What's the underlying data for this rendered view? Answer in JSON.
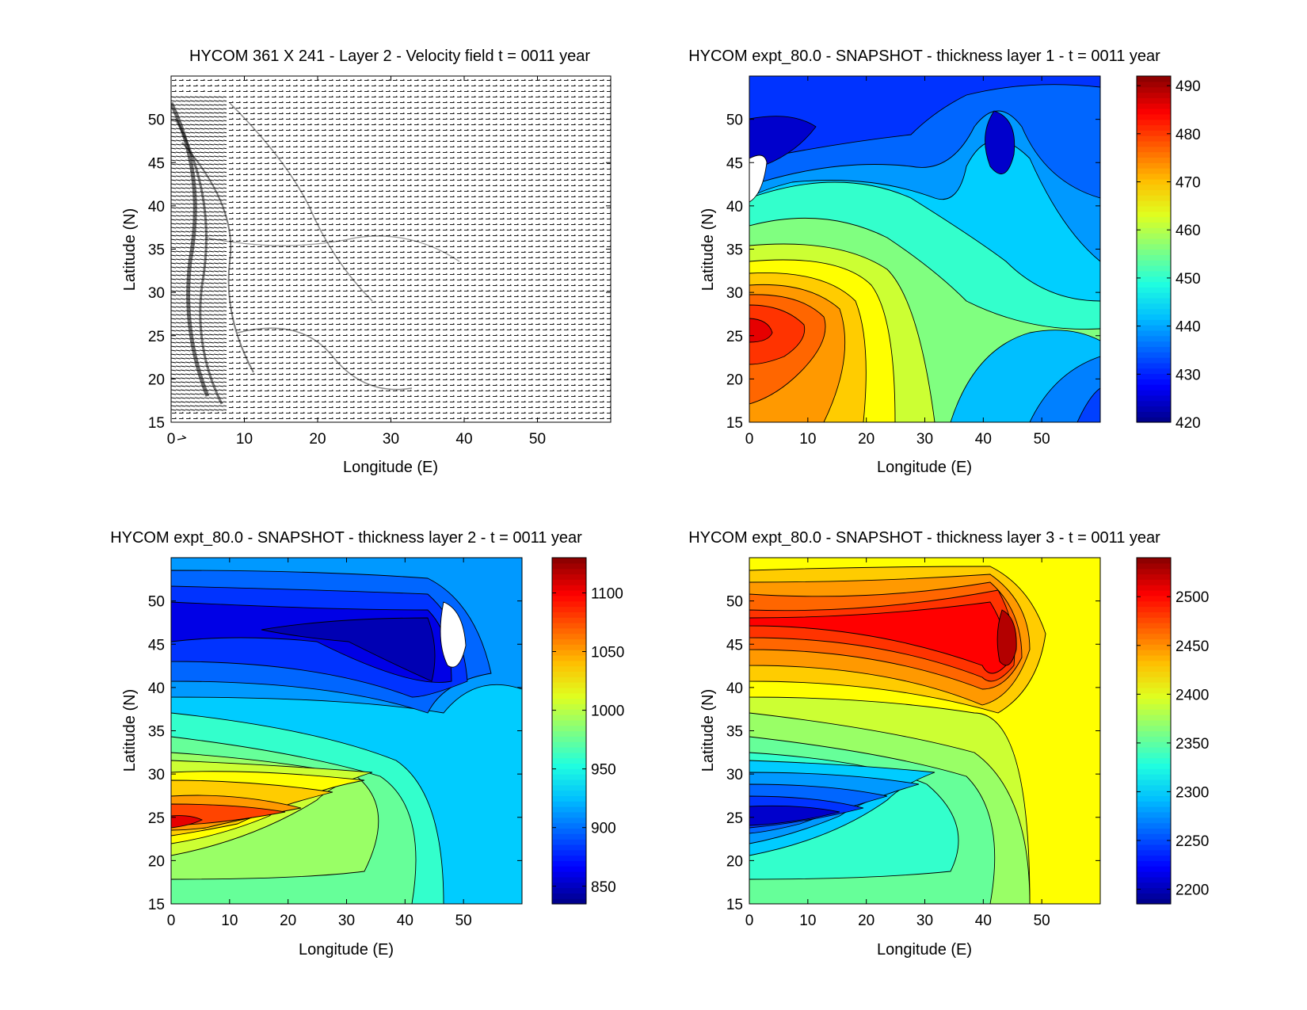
{
  "figure": {
    "panels": [
      {
        "id": "velocity",
        "title": "HYCOM 361 X 241 - Layer 2 - Velocity field  t = 0011 year",
        "xlabel": "Longitude (E)",
        "ylabel": "Latitude (N)",
        "x_ticks": [
          "0",
          "10",
          "20",
          "30",
          "40",
          "50"
        ],
        "y_ticks": [
          "15",
          "20",
          "25",
          "30",
          "35",
          "40",
          "45",
          "50"
        ]
      },
      {
        "id": "thickness1",
        "title": "HYCOM expt_80.0 - SNAPSHOT - thickness layer 1 - t = 0011 year",
        "xlabel": "Longitude (E)",
        "ylabel": "Latitude (N)",
        "x_ticks": [
          "0",
          "10",
          "20",
          "30",
          "40",
          "50"
        ],
        "y_ticks": [
          "15",
          "20",
          "25",
          "30",
          "35",
          "40",
          "45",
          "50"
        ],
        "colorbar_ticks": [
          "420",
          "430",
          "440",
          "450",
          "460",
          "470",
          "480",
          "490"
        ]
      },
      {
        "id": "thickness2",
        "title": "HYCOM expt_80.0 - SNAPSHOT - thickness layer 2 - t = 0011 year",
        "xlabel": "Longitude (E)",
        "ylabel": "Latitude (N)",
        "x_ticks": [
          "0",
          "10",
          "20",
          "30",
          "40",
          "50"
        ],
        "y_ticks": [
          "15",
          "20",
          "25",
          "30",
          "35",
          "40",
          "45",
          "50"
        ],
        "colorbar_ticks": [
          "850",
          "900",
          "950",
          "1000",
          "1050",
          "1100"
        ]
      },
      {
        "id": "thickness3",
        "title": "HYCOM expt_80.0 - SNAPSHOT - thickness layer 3 - t = 0011 year",
        "xlabel": "Longitude (E)",
        "ylabel": "Latitude (N)",
        "x_ticks": [
          "0",
          "10",
          "20",
          "30",
          "40",
          "50"
        ],
        "y_ticks": [
          "15",
          "20",
          "25",
          "30",
          "35",
          "40",
          "45",
          "50"
        ],
        "colorbar_ticks": [
          "2200",
          "2250",
          "2300",
          "2350",
          "2400",
          "2450",
          "2500"
        ]
      }
    ]
  },
  "chart_data": [
    {
      "type": "heatmap",
      "subtype": "quiver",
      "title": "HYCOM 361 X 241 - Layer 2 - Velocity field  t = 0011 year",
      "xlabel": "Longitude (E)",
      "ylabel": "Latitude (N)",
      "xlim": [
        0,
        60
      ],
      "ylim": [
        15,
        55
      ],
      "grid": 361,
      "grid_y": 241,
      "note_visible": "dense velocity arrows, strongest near western boundary (0-8E)"
    },
    {
      "type": "heatmap",
      "subtype": "filled-contour",
      "title": "HYCOM expt_80.0 - SNAPSHOT - thickness layer 1 - t = 0011 year",
      "xlabel": "Longitude (E)",
      "ylabel": "Latitude (N)",
      "xlim": [
        0,
        60
      ],
      "ylim": [
        15,
        55
      ],
      "colorbar": {
        "min": 420,
        "max": 492,
        "ticks": [
          420,
          430,
          440,
          450,
          460,
          470,
          480,
          490
        ],
        "colormap": "jet"
      },
      "features": [
        {
          "kind": "max",
          "lon": 2,
          "lat": 25,
          "value": 483
        },
        {
          "kind": "min",
          "lon": 45,
          "lat": 47,
          "value": 426
        },
        {
          "kind": "min",
          "lon": 2,
          "lat": 47,
          "value": 420
        }
      ]
    },
    {
      "type": "heatmap",
      "subtype": "filled-contour",
      "title": "HYCOM expt_80.0 - SNAPSHOT - thickness layer 2 - t = 0011 year",
      "xlabel": "Longitude (E)",
      "ylabel": "Latitude (N)",
      "xlim": [
        0,
        60
      ],
      "ylim": [
        15,
        55
      ],
      "colorbar": {
        "min": 835,
        "max": 1130,
        "ticks": [
          850,
          900,
          950,
          1000,
          1050,
          1100
        ],
        "colormap": "jet"
      },
      "features": [
        {
          "kind": "max",
          "lon": 2,
          "lat": 23,
          "value": 1095
        },
        {
          "kind": "min",
          "lon": 48,
          "lat": 47,
          "value": 835
        }
      ]
    },
    {
      "type": "heatmap",
      "subtype": "filled-contour",
      "title": "HYCOM expt_80.0 - SNAPSHOT - thickness layer 3 - t = 0011 year",
      "xlabel": "Longitude (E)",
      "ylabel": "Latitude (N)",
      "xlim": [
        0,
        60
      ],
      "ylim": [
        15,
        55
      ],
      "colorbar": {
        "min": 2185,
        "max": 2540,
        "ticks": [
          2200,
          2250,
          2300,
          2350,
          2400,
          2450,
          2500
        ],
        "colormap": "jet"
      },
      "features": [
        {
          "kind": "min",
          "lon": 3,
          "lat": 24,
          "value": 2205
        },
        {
          "kind": "max",
          "lon": 48,
          "lat": 47,
          "value": 2530
        }
      ]
    }
  ]
}
